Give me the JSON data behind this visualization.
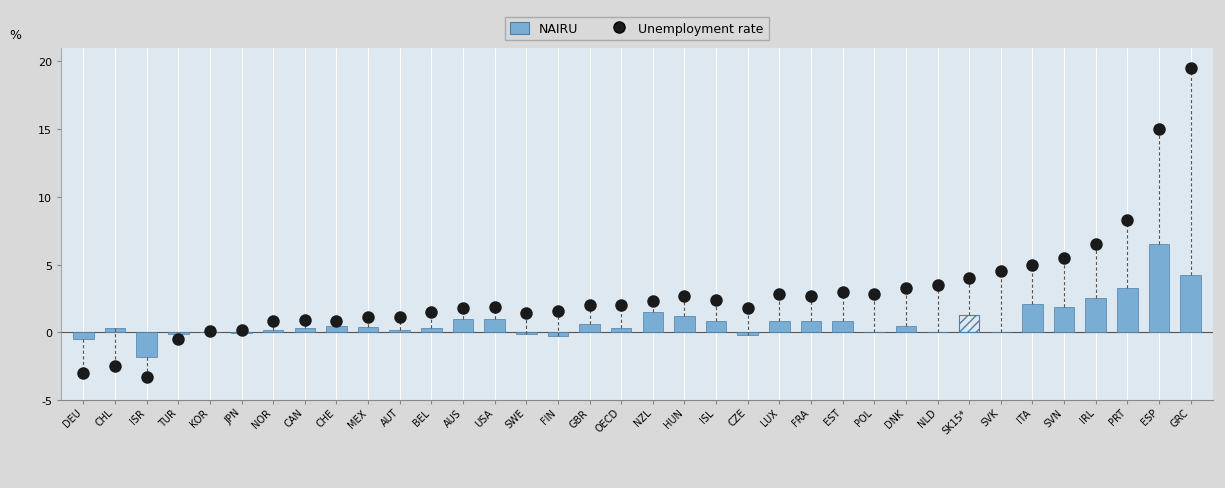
{
  "categories": [
    "DEU",
    "CHL",
    "ISR",
    "TUR",
    "KOR",
    "JPN",
    "NOR",
    "CAN",
    "CHE",
    "MEX",
    "AUT",
    "BEL",
    "AUS",
    "USA",
    "SWE",
    "FIN",
    "GBR",
    "OECD",
    "NZL",
    "HUN",
    "ISL",
    "CZE",
    "LUX",
    "FRA",
    "EST",
    "POL",
    "DNK",
    "NLD",
    "SK15*",
    "SVK",
    "ITA",
    "SVN",
    "IRL",
    "PRT",
    "ESP",
    "GRC"
  ],
  "nairu": [
    -0.5,
    0.3,
    -1.8,
    -0.15,
    0.0,
    -0.05,
    0.2,
    0.3,
    0.5,
    0.4,
    0.15,
    0.35,
    1.0,
    1.0,
    -0.1,
    -0.3,
    0.6,
    0.35,
    1.5,
    1.2,
    0.8,
    -0.2,
    0.8,
    0.8,
    0.8,
    0.0,
    0.5,
    0.05,
    1.3,
    0.0,
    2.1,
    1.9,
    2.5,
    3.3,
    6.5,
    4.2
  ],
  "unemployment": [
    -3.0,
    -2.5,
    -3.3,
    -0.5,
    0.1,
    0.2,
    0.8,
    0.9,
    0.8,
    1.1,
    1.1,
    1.5,
    1.8,
    1.9,
    1.4,
    1.6,
    2.0,
    2.0,
    2.3,
    2.7,
    2.4,
    1.8,
    2.8,
    2.7,
    3.0,
    2.8,
    3.3,
    3.5,
    4.0,
    4.5,
    5.0,
    5.5,
    6.5,
    8.3,
    15.0,
    19.5
  ],
  "hatched": [
    false,
    false,
    false,
    false,
    false,
    false,
    false,
    false,
    false,
    false,
    false,
    false,
    false,
    false,
    false,
    false,
    false,
    false,
    false,
    false,
    false,
    false,
    false,
    false,
    false,
    false,
    false,
    false,
    true,
    false,
    false,
    false,
    false,
    false,
    false,
    false
  ],
  "bar_color": "#7aadd4",
  "bar_edge_color": "#4d7fa8",
  "header_color": "#d9d9d9",
  "plot_bg_color": "#dde8f0",
  "ylim": [
    -5,
    21
  ],
  "yticks": [
    -5,
    0,
    5,
    10,
    15,
    20
  ],
  "ylabel": "%",
  "grid_color": "#ffffff",
  "dot_color": "#1a1a1a",
  "line_color": "#555555"
}
